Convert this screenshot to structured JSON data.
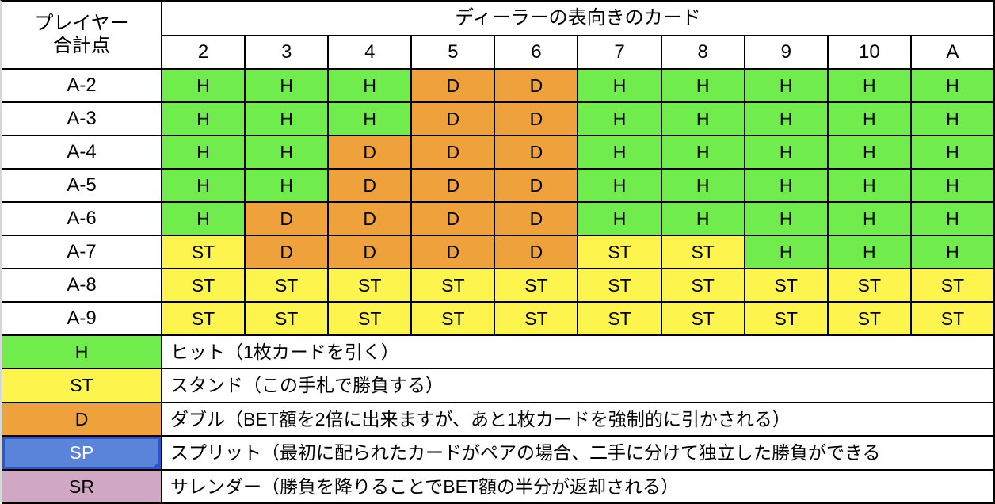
{
  "colors": {
    "H": "#70ec4c",
    "ST": "#fef44e",
    "D": "#efa23b",
    "SP": "#5a84d9",
    "SR": "#d1a8c3",
    "selection": "#2a57cd",
    "sp_text": "#ffffff"
  },
  "table": {
    "corner_line1": "プレイヤー",
    "corner_line2": "合計点",
    "dealer_header": "ディーラーの表向きのカード",
    "dealer_cards": [
      "2",
      "3",
      "4",
      "5",
      "6",
      "7",
      "8",
      "9",
      "10",
      "A"
    ],
    "rows": [
      {
        "label": "A-2",
        "actions": [
          "H",
          "H",
          "H",
          "D",
          "D",
          "H",
          "H",
          "H",
          "H",
          "H"
        ]
      },
      {
        "label": "A-3",
        "actions": [
          "H",
          "H",
          "H",
          "D",
          "D",
          "H",
          "H",
          "H",
          "H",
          "H"
        ]
      },
      {
        "label": "A-4",
        "actions": [
          "H",
          "H",
          "D",
          "D",
          "D",
          "H",
          "H",
          "H",
          "H",
          "H"
        ]
      },
      {
        "label": "A-5",
        "actions": [
          "H",
          "H",
          "D",
          "D",
          "D",
          "H",
          "H",
          "H",
          "H",
          "H"
        ]
      },
      {
        "label": "A-6",
        "actions": [
          "H",
          "D",
          "D",
          "D",
          "D",
          "H",
          "H",
          "H",
          "H",
          "H"
        ]
      },
      {
        "label": "A-7",
        "actions": [
          "ST",
          "D",
          "D",
          "D",
          "D",
          "ST",
          "ST",
          "H",
          "H",
          "H"
        ]
      },
      {
        "label": "A-8",
        "actions": [
          "ST",
          "ST",
          "ST",
          "ST",
          "ST",
          "ST",
          "ST",
          "ST",
          "ST",
          "ST"
        ]
      },
      {
        "label": "A-9",
        "actions": [
          "ST",
          "ST",
          "ST",
          "ST",
          "ST",
          "ST",
          "ST",
          "ST",
          "ST",
          "ST"
        ]
      }
    ]
  },
  "legend": [
    {
      "code": "H",
      "description": "ヒット（1枚カードを引く）"
    },
    {
      "code": "ST",
      "description": "スタンド（この手札で勝負する）"
    },
    {
      "code": "D",
      "description": "ダブル（BET額を2倍に出来ますが、あと1枚カードを強制的に引かされる）"
    },
    {
      "code": "SP",
      "description": "スプリット（最初に配られたカードがペアの場合、二手に分けて独立した勝負ができる",
      "selected": true
    },
    {
      "code": "SR",
      "description": "サレンダー（勝負を降りることでBET額の半分が返却される）"
    }
  ]
}
